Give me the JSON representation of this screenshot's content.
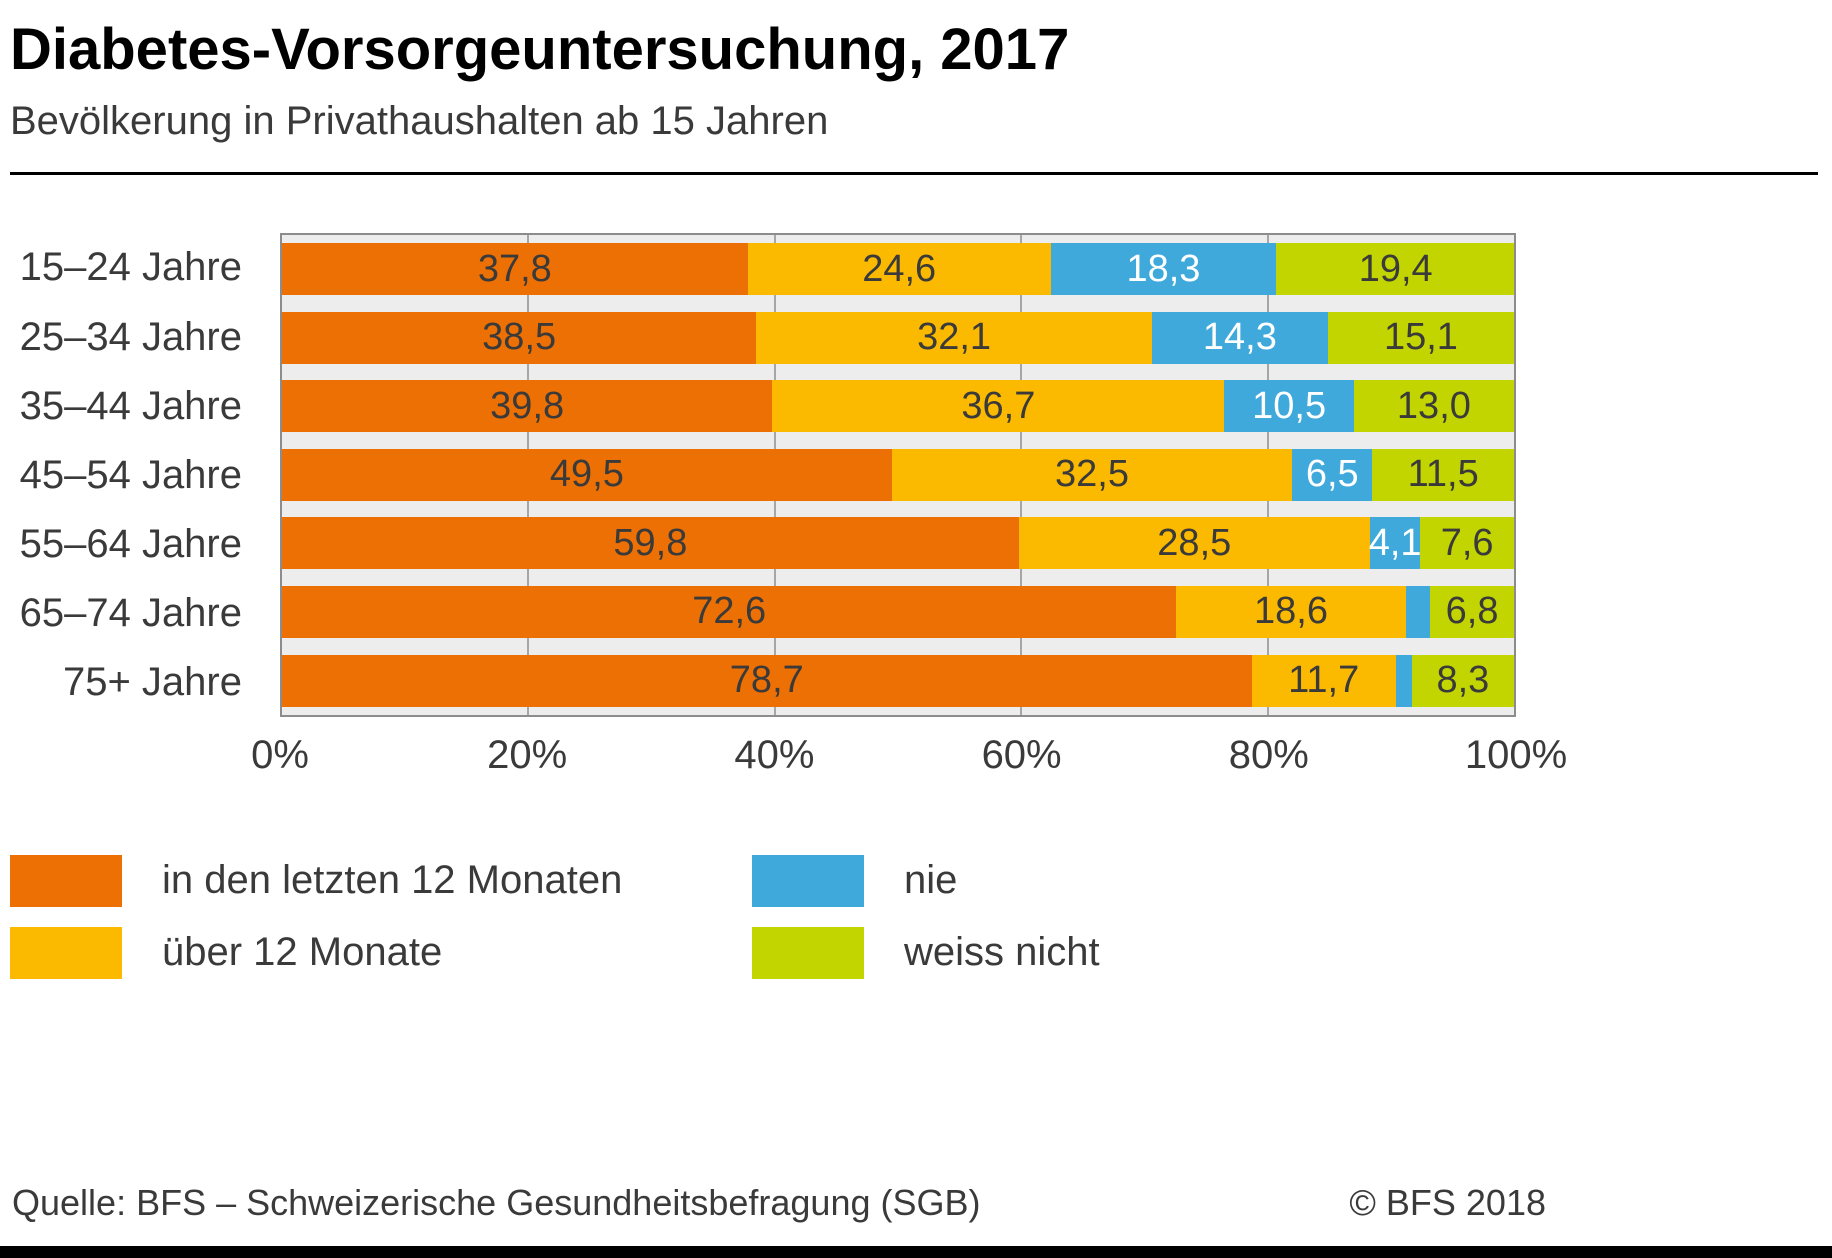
{
  "header": {
    "title": "Diabetes-Vorsorgeuntersuchung, 2017",
    "subtitle": "Bevölkerung in Privathaushalten ab 15 Jahren"
  },
  "chart_data": {
    "type": "bar",
    "stacked": true,
    "orientation": "horizontal",
    "title": "Diabetes-Vorsorgeuntersuchung, 2017",
    "subtitle": "Bevölkerung in Privathaushalten ab 15 Jahren",
    "categories": [
      "15–24 Jahre",
      "25–34 Jahre",
      "35–44 Jahre",
      "45–54 Jahre",
      "55–64 Jahre",
      "65–74 Jahre",
      "75+ Jahre"
    ],
    "series": [
      {
        "name": "in den letzten 12 Monaten",
        "color": "#ED7004",
        "label_color": "#3a3a3a",
        "values": [
          37.8,
          38.5,
          39.8,
          49.5,
          59.8,
          72.6,
          78.7
        ],
        "labels": [
          "37,8",
          "38,5",
          "39,8",
          "49,5",
          "59,8",
          "72,6",
          "78,7"
        ]
      },
      {
        "name": "über 12 Monate",
        "color": "#FBBA00",
        "label_color": "#3a3a3a",
        "values": [
          24.6,
          32.1,
          36.7,
          32.5,
          28.5,
          18.6,
          11.7
        ],
        "labels": [
          "24,6",
          "32,1",
          "36,7",
          "32,5",
          "28,5",
          "18,6",
          "11,7"
        ]
      },
      {
        "name": "nie",
        "color": "#3FA9DC",
        "label_color": "#ffffff",
        "values": [
          18.3,
          14.3,
          10.5,
          6.5,
          4.1,
          2.0,
          1.3
        ],
        "labels": [
          "18,3",
          "14,3",
          "10,5",
          "6,5",
          "4,1",
          "",
          ""
        ]
      },
      {
        "name": "weiss nicht",
        "color": "#C2D500",
        "label_color": "#3a3a3a",
        "values": [
          19.4,
          15.1,
          13.0,
          11.5,
          7.6,
          6.8,
          8.3
        ],
        "labels": [
          "19,4",
          "15,1",
          "13,0",
          "11,5",
          "7,6",
          "6,8",
          "8,3"
        ]
      }
    ],
    "xlim": [
      0,
      100
    ],
    "x_ticks": [
      "0%",
      "20%",
      "40%",
      "60%",
      "80%",
      "100%"
    ],
    "gridlines": [
      20,
      40,
      60,
      80
    ],
    "legend_position": "bottom"
  },
  "legend": {
    "items": [
      {
        "label": "in den letzten 12 Monaten",
        "color": "#ED7004"
      },
      {
        "label": "über 12 Monate",
        "color": "#FBBA00"
      },
      {
        "label": "nie",
        "color": "#3FA9DC"
      },
      {
        "label": "weiss nicht",
        "color": "#C2D500"
      }
    ]
  },
  "footer": {
    "source": "Quelle: BFS – Schweizerische Gesundheitsbefragung (SGB)",
    "copyright": "© BFS 2018"
  }
}
